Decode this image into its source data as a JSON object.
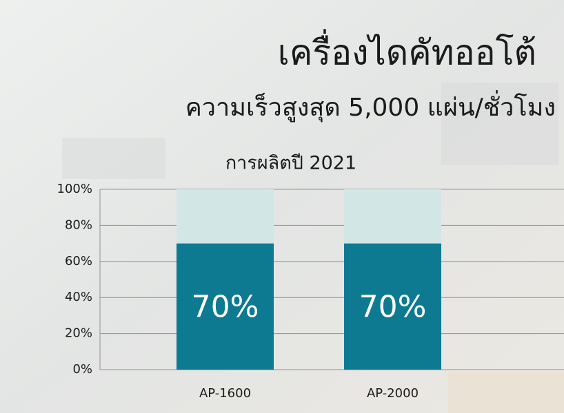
{
  "chart_data": {
    "type": "stacked_bar",
    "title": "เครื่องไดคัทออโต้",
    "subtitle": "ความเร็วสูงสุด 5,000 แผ่น/ชั่วโมง",
    "chart_title": "การผลิตปี 2021",
    "categories": [
      "AP-1600",
      "AP-2000"
    ],
    "series": [
      {
        "color": "#0e7a91",
        "values": [
          70,
          70
        ],
        "value_labels": [
          "70%",
          "70%"
        ]
      },
      {
        "color": "#d3e6e6",
        "values": [
          30,
          30
        ]
      }
    ],
    "ylim": [
      0,
      100
    ],
    "yticks": [
      {
        "value": 0,
        "label": "0%"
      },
      {
        "value": 20,
        "label": "20%"
      },
      {
        "value": 40,
        "label": "40%"
      },
      {
        "value": 60,
        "label": "60%"
      },
      {
        "value": 80,
        "label": "80%"
      },
      {
        "value": 100,
        "label": "100%"
      }
    ],
    "grid": true
  }
}
